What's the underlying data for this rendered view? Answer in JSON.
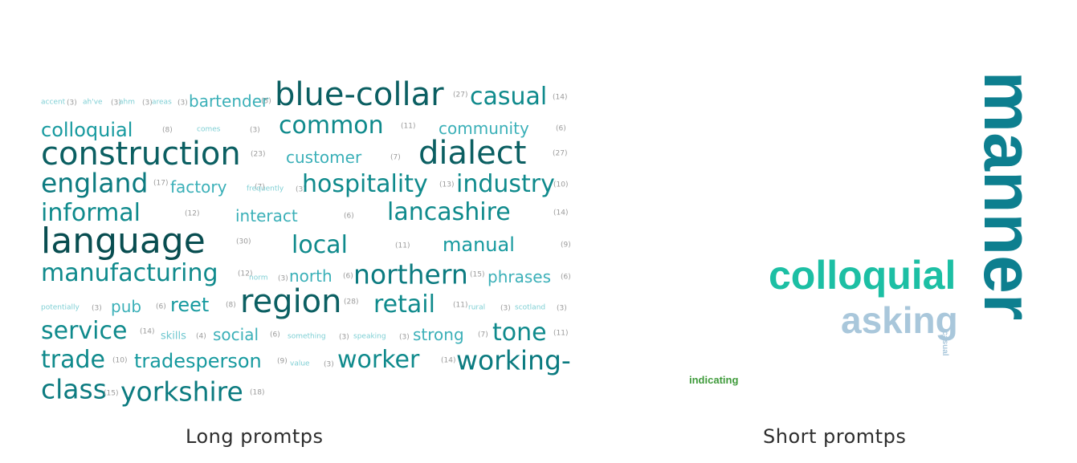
{
  "long": {
    "caption": "Long promtps",
    "words": [
      {
        "id": "accent",
        "text": "accent",
        "count": "(3)",
        "tier": 1
      },
      {
        "id": "ahve",
        "text": "ah've",
        "count": "(3)",
        "tier": 1
      },
      {
        "id": "ahm",
        "text": "ahm",
        "count": "(3)",
        "tier": 1
      },
      {
        "id": "areas",
        "text": "areas",
        "count": "(3)",
        "tier": 1
      },
      {
        "id": "bartender",
        "text": "bartender",
        "count": "(5)",
        "tier": 3
      },
      {
        "id": "blue-collar",
        "text": "blue-collar",
        "count": "(27)",
        "tier": 7
      },
      {
        "id": "casual",
        "text": "casual",
        "count": "(14)",
        "tier": 5
      },
      {
        "id": "colloquial",
        "text": "colloquial",
        "count": "(8)",
        "tier": 4
      },
      {
        "id": "comes",
        "text": "comes",
        "count": "(3)",
        "tier": 1
      },
      {
        "id": "common",
        "text": "common",
        "count": "(11)",
        "tier": 5
      },
      {
        "id": "community",
        "text": "community",
        "count": "(6)",
        "tier": 3
      },
      {
        "id": "construction",
        "text": "construction",
        "count": "(23)",
        "tier": 7
      },
      {
        "id": "customer",
        "text": "customer",
        "count": "(7)",
        "tier": 3
      },
      {
        "id": "dialect",
        "text": "dialect",
        "count": "(27)",
        "tier": 7
      },
      {
        "id": "england",
        "text": "england",
        "count": "(17)",
        "tier": 6
      },
      {
        "id": "factory",
        "text": "factory",
        "count": "(7)",
        "tier": 3
      },
      {
        "id": "frequently",
        "text": "frequently",
        "count": "(3)",
        "tier": 1
      },
      {
        "id": "hospitality",
        "text": "hospitality",
        "count": "(13)",
        "tier": 5
      },
      {
        "id": "industry",
        "text": "industry",
        "count": "(10)",
        "tier": 5
      },
      {
        "id": "informal",
        "text": "informal",
        "count": "(12)",
        "tier": 5
      },
      {
        "id": "interact",
        "text": "interact",
        "count": "(6)",
        "tier": 3
      },
      {
        "id": "lancashire",
        "text": "lancashire",
        "count": "(14)",
        "tier": 5
      },
      {
        "id": "language",
        "text": "language",
        "count": "(30)",
        "tier": 8
      },
      {
        "id": "local",
        "text": "local",
        "count": "(11)",
        "tier": 5
      },
      {
        "id": "manual",
        "text": "manual",
        "count": "(9)",
        "tier": 4
      },
      {
        "id": "manufacturing",
        "text": "manufacturing",
        "count": "(12)",
        "tier": 5
      },
      {
        "id": "norm",
        "text": "norm",
        "count": "(3)",
        "tier": 1
      },
      {
        "id": "north",
        "text": "north",
        "count": "(6)",
        "tier": 3
      },
      {
        "id": "northern",
        "text": "northern",
        "count": "(15)",
        "tier": 6
      },
      {
        "id": "phrases",
        "text": "phrases",
        "count": "(6)",
        "tier": 3
      },
      {
        "id": "potentially",
        "text": "potentially",
        "count": "(3)",
        "tier": 1
      },
      {
        "id": "pub",
        "text": "pub",
        "count": "(6)",
        "tier": 3
      },
      {
        "id": "reet",
        "text": "reet",
        "count": "(8)",
        "tier": 4
      },
      {
        "id": "region",
        "text": "region",
        "count": "(28)",
        "tier": 7
      },
      {
        "id": "retail",
        "text": "retail",
        "count": "(11)",
        "tier": 5
      },
      {
        "id": "rural",
        "text": "rural",
        "count": "(3)",
        "tier": 1
      },
      {
        "id": "scotland",
        "text": "scotland",
        "count": "(3)",
        "tier": 1
      },
      {
        "id": "service",
        "text": "service",
        "count": "(14)",
        "tier": 5
      },
      {
        "id": "skills",
        "text": "skills",
        "count": "(4)",
        "tier": 2
      },
      {
        "id": "social",
        "text": "social",
        "count": "(6)",
        "tier": 3
      },
      {
        "id": "something",
        "text": "something",
        "count": "(3)",
        "tier": 1
      },
      {
        "id": "speaking",
        "text": "speaking",
        "count": "(3)",
        "tier": 1
      },
      {
        "id": "strong",
        "text": "strong",
        "count": "(7)",
        "tier": 3
      },
      {
        "id": "tone",
        "text": "tone",
        "count": "(11)",
        "tier": 5
      },
      {
        "id": "trade",
        "text": "trade",
        "count": "(10)",
        "tier": 5
      },
      {
        "id": "tradesperson",
        "text": "tradesperson",
        "count": "(9)",
        "tier": 4
      },
      {
        "id": "value",
        "text": "value",
        "count": "(3)",
        "tier": 1
      },
      {
        "id": "worker",
        "text": "worker",
        "count": "(14)",
        "tier": 5
      },
      {
        "id": "working-class",
        "text": "working-class",
        "count": "(15)",
        "tier": 6
      },
      {
        "id": "yorkshire",
        "text": "yorkshire",
        "count": "(18)",
        "tier": 6
      }
    ]
  },
  "short": {
    "caption": "Short promtps",
    "words": {
      "manner": "manner",
      "colloquial": "colloquial",
      "asking": "asking",
      "casual": "casual",
      "indicating": "indicating"
    }
  }
}
